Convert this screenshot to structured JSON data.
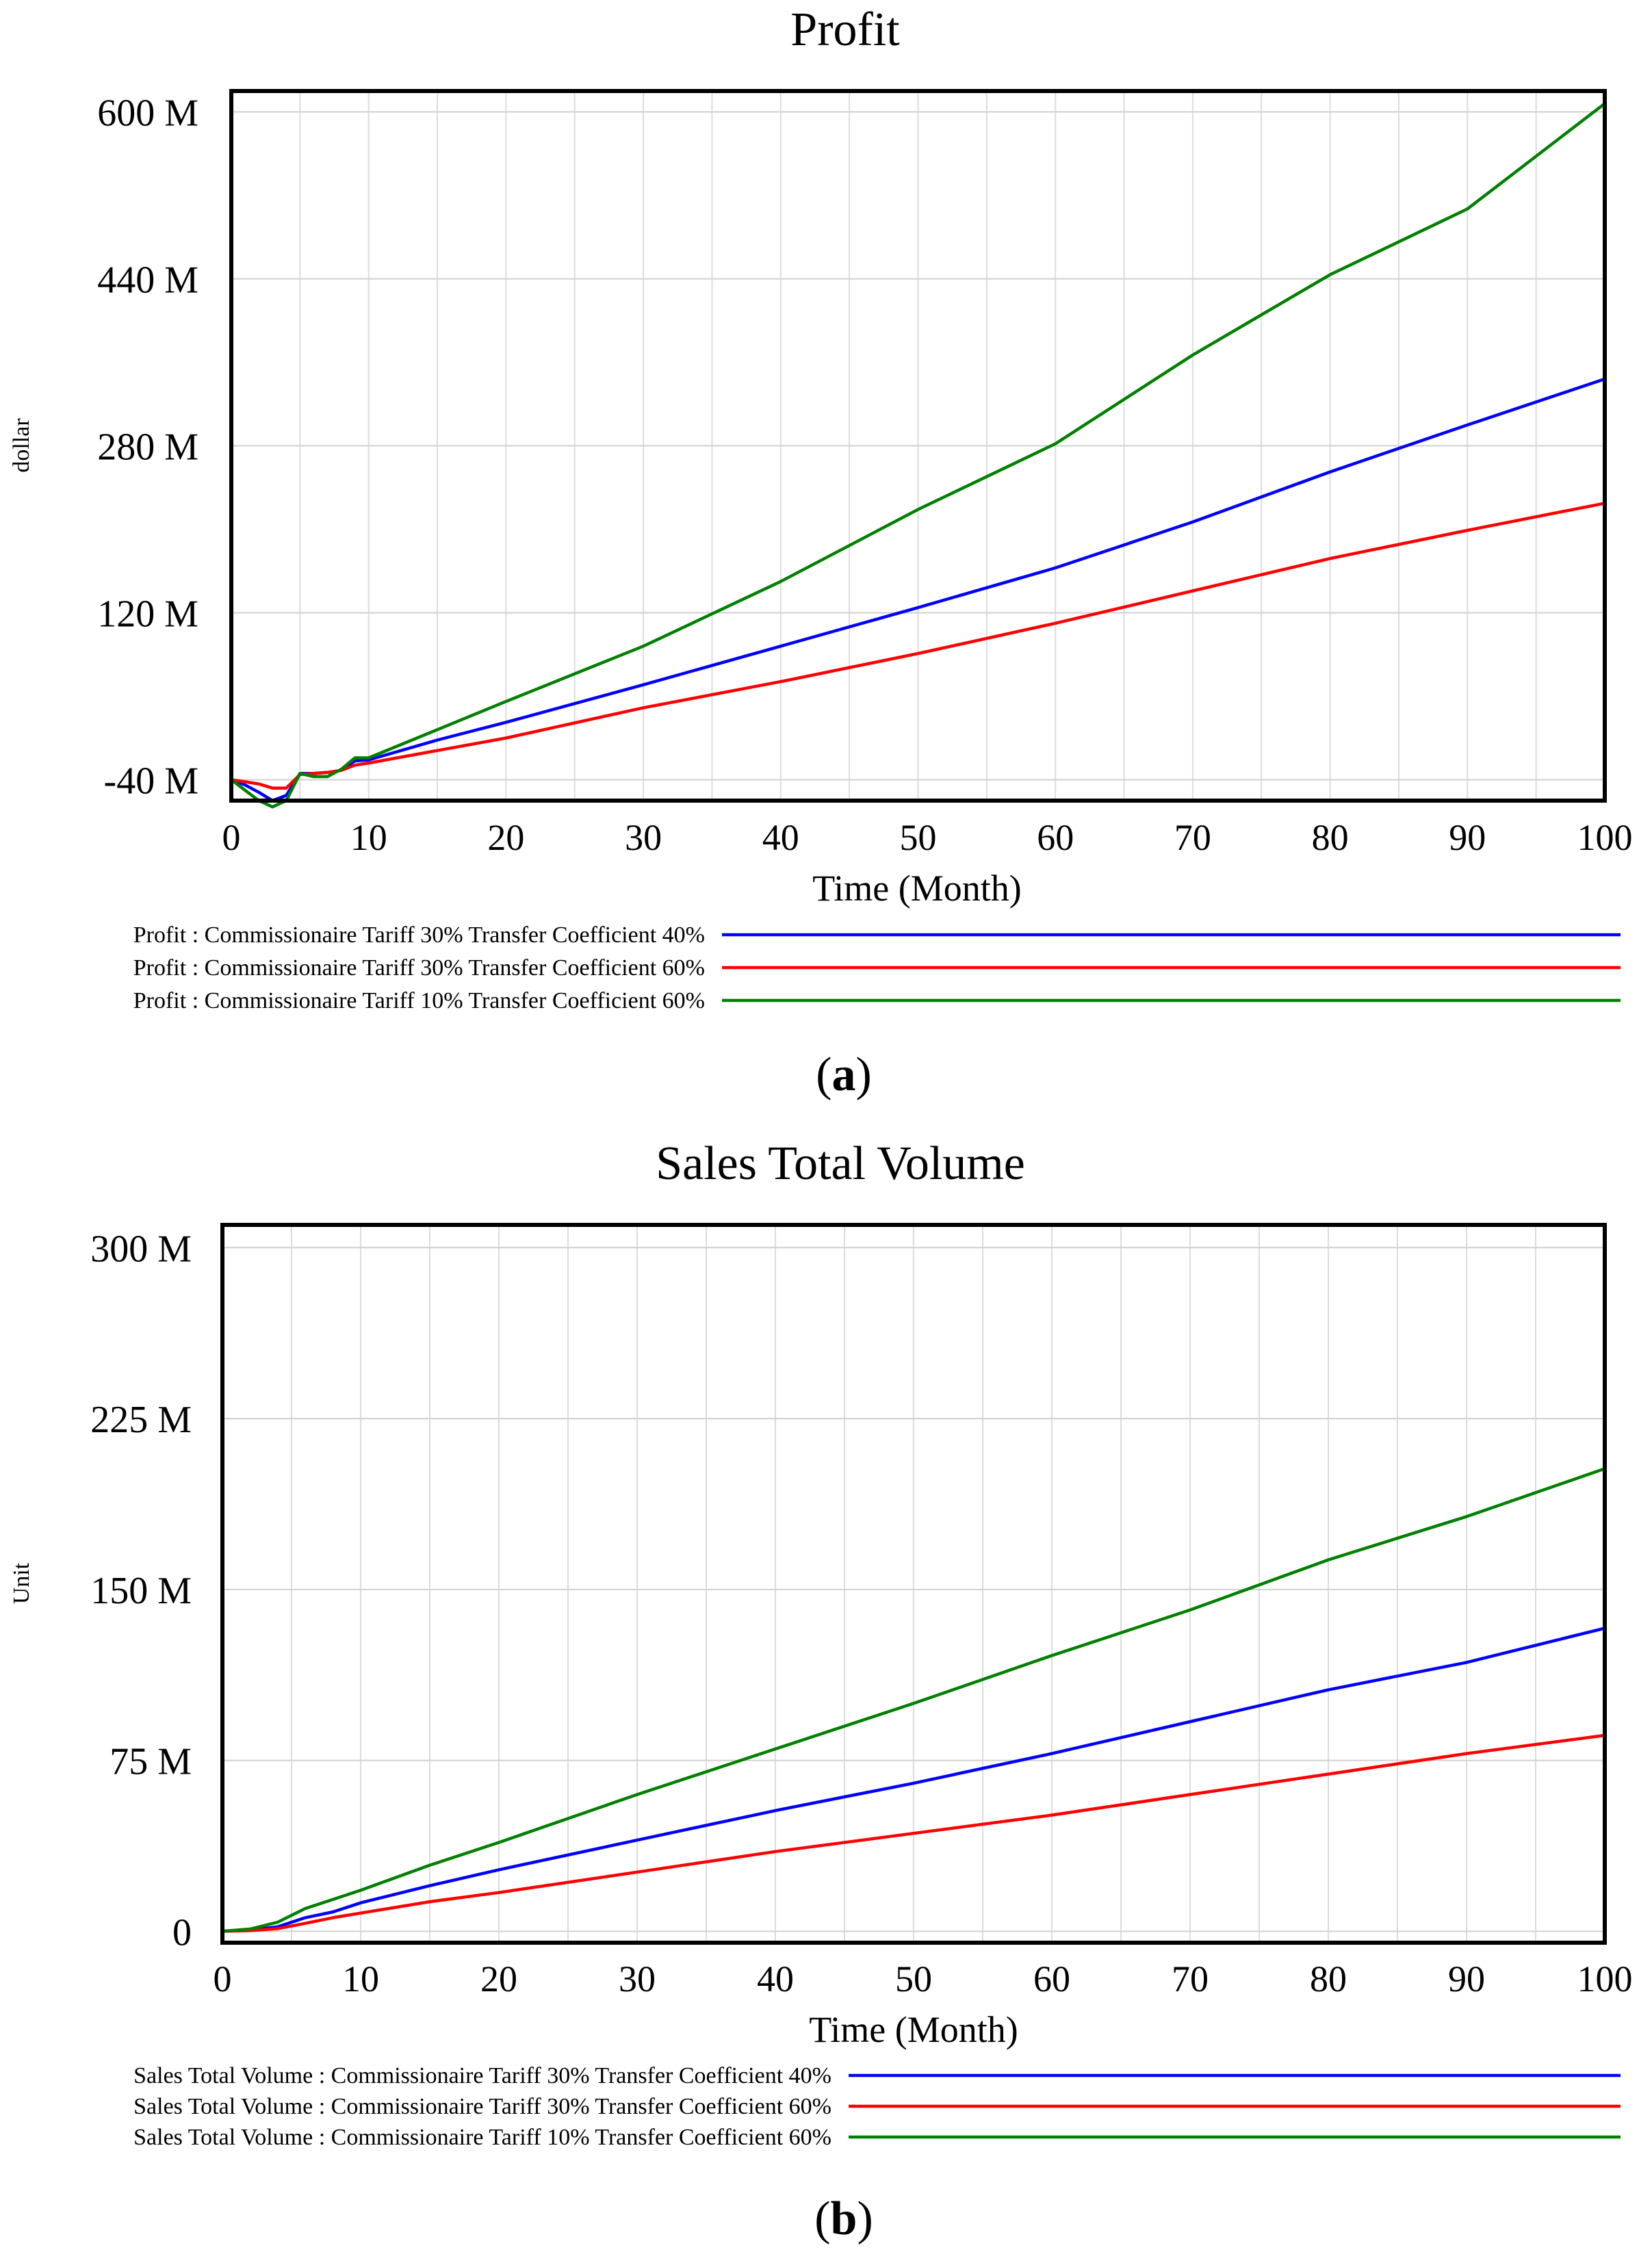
{
  "chart_data": [
    {
      "type": "line",
      "title": "Profit",
      "xlabel": "Time (Month)",
      "ylabel": "dollar",
      "xlim": [
        0,
        100
      ],
      "ylim": [
        -60,
        620
      ],
      "x_ticks": [
        0,
        10,
        20,
        30,
        40,
        50,
        60,
        70,
        80,
        90,
        100
      ],
      "y_ticks": [
        -40,
        120,
        280,
        440,
        600
      ],
      "y_tick_labels": [
        "-40 M",
        "120 M",
        "280 M",
        "440 M",
        "600 M"
      ],
      "panel_label": "a",
      "series": [
        {
          "name": "Profit : Commissionaire Tariff 30% Transfer Coefficient 40%",
          "color": "#0000ff",
          "x": [
            0,
            1,
            2,
            3,
            4,
            5,
            6,
            7,
            8,
            9,
            10,
            15,
            20,
            30,
            40,
            50,
            60,
            70,
            80,
            90,
            100
          ],
          "values": [
            -40,
            -45,
            -52,
            -60,
            -55,
            -34,
            -34,
            -33,
            -31,
            -22,
            -21,
            -2,
            15,
            51,
            88,
            125,
            163,
            207,
            255,
            300,
            344
          ]
        },
        {
          "name": "Profit : Commissionaire Tariff 30% Transfer Coefficient 60%",
          "color": "#ff0000",
          "x": [
            0,
            1,
            2,
            3,
            4,
            5,
            6,
            7,
            8,
            9,
            10,
            15,
            20,
            30,
            40,
            50,
            60,
            70,
            80,
            90,
            100
          ],
          "values": [
            -40,
            -42,
            -44,
            -48,
            -48,
            -35,
            -34,
            -33,
            -31,
            -26,
            -24,
            -12,
            0,
            29,
            54,
            81,
            110,
            141,
            172,
            199,
            225
          ]
        },
        {
          "name": "Profit : Commissionaire Tariff 10% Transfer Coefficient 60%",
          "color": "#008000",
          "x": [
            0,
            1,
            2,
            3,
            4,
            5,
            6,
            7,
            8,
            9,
            10,
            15,
            20,
            30,
            40,
            50,
            60,
            70,
            80,
            90,
            100
          ],
          "values": [
            -40,
            -50,
            -60,
            -66,
            -60,
            -34,
            -37,
            -37,
            -30,
            -19,
            -19,
            8,
            35,
            88,
            150,
            219,
            282,
            367,
            444,
            507,
            608
          ]
        }
      ]
    },
    {
      "type": "line",
      "title": "Sales Total Volume",
      "xlabel": "Time (Month)",
      "ylabel": "Unit",
      "xlim": [
        0,
        100
      ],
      "ylim": [
        -5,
        310
      ],
      "x_ticks": [
        0,
        10,
        20,
        30,
        40,
        50,
        60,
        70,
        80,
        90,
        100
      ],
      "y_ticks": [
        0,
        75,
        150,
        225,
        300
      ],
      "y_tick_labels": [
        "0",
        "75 M",
        "150 M",
        "225 M",
        "300 M"
      ],
      "panel_label": "b",
      "series": [
        {
          "name": "Sales Total Volume : Commissionaire Tariff 30% Transfer Coefficient 40%",
          "color": "#0000ff",
          "x": [
            0,
            2,
            4,
            6,
            8,
            10,
            15,
            20,
            30,
            40,
            50,
            60,
            70,
            80,
            90,
            100
          ],
          "values": [
            0,
            0.5,
            2,
            6,
            8.5,
            12.5,
            20,
            27,
            40,
            53,
            65,
            78,
            92,
            106,
            118,
            133
          ]
        },
        {
          "name": "Sales Total Volume : Commissionaire Tariff 30% Transfer Coefficient 60%",
          "color": "#ff0000",
          "x": [
            0,
            2,
            4,
            6,
            8,
            10,
            15,
            20,
            30,
            40,
            50,
            60,
            70,
            80,
            90,
            100
          ],
          "values": [
            0,
            0.3,
            1.2,
            3.5,
            6,
            8,
            13,
            17,
            26,
            35,
            43,
            51,
            60,
            69,
            78,
            86
          ]
        },
        {
          "name": "Sales Total Volume : Commissionaire Tariff 10% Transfer Coefficient 60%",
          "color": "#008000",
          "x": [
            0,
            2,
            4,
            6,
            8,
            10,
            15,
            20,
            30,
            40,
            50,
            60,
            70,
            80,
            90,
            100
          ],
          "values": [
            0,
            1,
            4,
            10,
            14,
            18,
            29,
            39,
            60,
            80,
            100,
            121,
            141,
            163,
            182,
            203
          ]
        }
      ]
    }
  ]
}
